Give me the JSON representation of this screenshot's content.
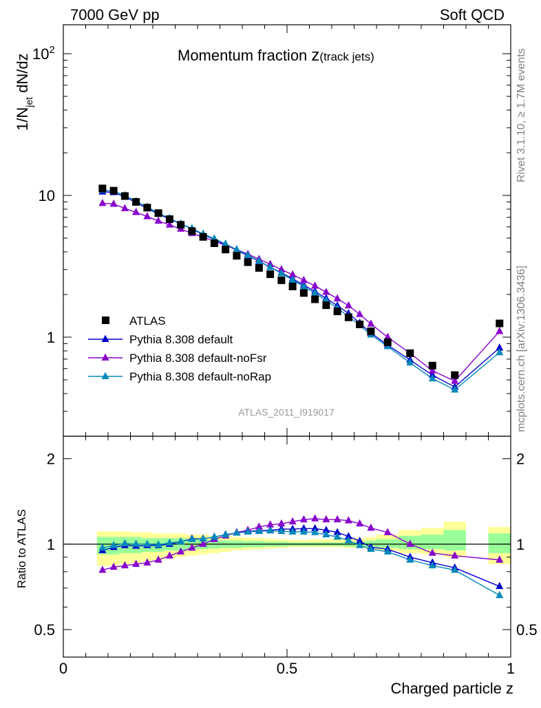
{
  "header": {
    "left": "7000 GeV pp",
    "right": "Soft QCD",
    "side_top": "Rivet 3.1.10, ≥ 1.7M events",
    "side_bottom": "mcplots.cern.ch [arXiv:1306.3436]"
  },
  "chart_data": {
    "type": "line",
    "title_main": "Momentum fraction ",
    "title_z": "z",
    "title_sub": "(track jets)",
    "reference": "ATLAS_2011_I919017",
    "xlabel": "Charged particle z",
    "ylabel": "1/N",
    "ylabel_sub": "jet",
    "ylabel_tail": " dN/dz",
    "ratio_ylabel": "Ratio to ATLAS",
    "xlim": [
      0,
      1
    ],
    "ylim": [
      0.2,
      160
    ],
    "ylog": true,
    "ratio_ylim": [
      0.4,
      2.4
    ],
    "ratio_log": true,
    "x_ticks": [
      {
        "v": 0,
        "label": "0"
      },
      {
        "v": 0.5,
        "label": "0.5"
      },
      {
        "v": 1,
        "label": "1"
      }
    ],
    "y_ticks": [
      {
        "v": 1,
        "label": "1"
      },
      {
        "v": 10,
        "label": "10"
      },
      {
        "v": 100,
        "label": "10",
        "sup": "2"
      }
    ],
    "ratio_ticks": [
      {
        "v": 0.5,
        "label": "0.5"
      },
      {
        "v": 1,
        "label": "1"
      },
      {
        "v": 2,
        "label": "2"
      }
    ],
    "bins": [
      0.0875,
      0.1125,
      0.1375,
      0.1625,
      0.1875,
      0.2125,
      0.2375,
      0.2625,
      0.2875,
      0.3125,
      0.3375,
      0.3625,
      0.3875,
      0.4125,
      0.4375,
      0.4625,
      0.4875,
      0.5125,
      0.5375,
      0.5625,
      0.5875,
      0.6125,
      0.6375,
      0.6625,
      0.6875,
      0.725,
      0.775,
      0.825,
      0.875,
      0.975
    ],
    "bin_edges": [
      0.075,
      0.1,
      0.125,
      0.15,
      0.175,
      0.2,
      0.225,
      0.25,
      0.275,
      0.3,
      0.325,
      0.35,
      0.375,
      0.4,
      0.425,
      0.45,
      0.475,
      0.5,
      0.525,
      0.55,
      0.575,
      0.6,
      0.625,
      0.65,
      0.675,
      0.7,
      0.75,
      0.8,
      0.85,
      0.9,
      0.95,
      1.0
    ],
    "data": {
      "name": "ATLAS",
      "values": [
        11.2,
        10.8,
        9.9,
        9.0,
        8.2,
        7.5,
        6.8,
        6.2,
        5.6,
        5.1,
        4.6,
        4.15,
        3.75,
        3.38,
        3.08,
        2.78,
        2.52,
        2.28,
        2.05,
        1.85,
        1.68,
        1.52,
        1.38,
        1.23,
        1.1,
        0.92,
        0.77,
        0.63,
        0.54,
        1.25
      ]
    },
    "band_outer": [
      [
        0.84,
        1.11
      ],
      [
        0.84,
        1.11
      ],
      [
        0.85,
        1.11
      ],
      [
        0.86,
        1.1
      ],
      [
        0.87,
        1.1
      ],
      [
        0.88,
        1.09
      ],
      [
        0.89,
        1.09
      ],
      [
        0.9,
        1.09
      ],
      [
        0.91,
        1.08
      ],
      [
        0.92,
        1.08
      ],
      [
        0.93,
        1.07
      ],
      [
        0.94,
        1.07
      ],
      [
        0.95,
        1.06
      ],
      [
        0.955,
        1.055
      ],
      [
        0.96,
        1.05
      ],
      [
        0.965,
        1.045
      ],
      [
        0.97,
        1.04
      ],
      [
        0.975,
        1.035
      ],
      [
        0.975,
        1.035
      ],
      [
        0.975,
        1.04
      ],
      [
        0.975,
        1.04
      ],
      [
        0.975,
        1.04
      ],
      [
        0.97,
        1.045
      ],
      [
        0.97,
        1.05
      ],
      [
        0.96,
        1.06
      ],
      [
        0.95,
        1.08
      ],
      [
        0.93,
        1.12
      ],
      [
        0.92,
        1.14
      ],
      [
        0.9,
        1.2
      ],
      null,
      [
        0.85,
        1.15
      ]
    ],
    "band_inner": [
      [
        0.92,
        1.06
      ],
      [
        0.92,
        1.06
      ],
      [
        0.93,
        1.06
      ],
      [
        0.93,
        1.06
      ],
      [
        0.94,
        1.05
      ],
      [
        0.94,
        1.05
      ],
      [
        0.95,
        1.05
      ],
      [
        0.95,
        1.05
      ],
      [
        0.96,
        1.04
      ],
      [
        0.96,
        1.04
      ],
      [
        0.965,
        1.035
      ],
      [
        0.97,
        1.03
      ],
      [
        0.97,
        1.03
      ],
      [
        0.975,
        1.025
      ],
      [
        0.975,
        1.025
      ],
      [
        0.98,
        1.02
      ],
      [
        0.98,
        1.02
      ],
      [
        0.985,
        1.015
      ],
      [
        0.985,
        1.015
      ],
      [
        0.985,
        1.015
      ],
      [
        0.985,
        1.015
      ],
      [
        0.985,
        1.015
      ],
      [
        0.98,
        1.02
      ],
      [
        0.98,
        1.02
      ],
      [
        0.975,
        1.03
      ],
      [
        0.97,
        1.04
      ],
      [
        0.96,
        1.07
      ],
      [
        0.96,
        1.08
      ],
      [
        0.95,
        1.12
      ],
      null,
      [
        0.93,
        1.09
      ]
    ],
    "series": [
      {
        "name": "Pythia 8.308 default",
        "color": "#0000cc",
        "values": [
          10.6,
          10.5,
          9.8,
          8.9,
          8.1,
          7.4,
          6.8,
          6.3,
          5.8,
          5.3,
          4.9,
          4.5,
          4.1,
          3.75,
          3.43,
          3.12,
          2.85,
          2.58,
          2.33,
          2.1,
          1.88,
          1.67,
          1.47,
          1.26,
          1.07,
          0.88,
          0.69,
          0.54,
          0.445,
          0.84
        ],
        "ratio": [
          0.95,
          0.975,
          0.99,
          0.985,
          0.99,
          0.99,
          1.0,
          1.02,
          1.045,
          1.045,
          1.06,
          1.08,
          1.095,
          1.11,
          1.115,
          1.12,
          1.13,
          1.13,
          1.135,
          1.135,
          1.12,
          1.1,
          1.065,
          1.025,
          0.975,
          0.96,
          0.9,
          0.86,
          0.825,
          0.71
        ]
      },
      {
        "name": "Pythia 8.308 default-noFsr",
        "color": "#8800cc",
        "values": [
          8.8,
          8.7,
          8.1,
          7.6,
          7.1,
          6.6,
          6.2,
          5.8,
          5.4,
          5.1,
          4.75,
          4.45,
          4.15,
          3.85,
          3.55,
          3.27,
          3.0,
          2.76,
          2.52,
          2.3,
          2.08,
          1.87,
          1.67,
          1.45,
          1.24,
          1.0,
          0.77,
          0.58,
          0.49,
          1.1
        ],
        "ratio": [
          0.81,
          0.83,
          0.84,
          0.85,
          0.86,
          0.88,
          0.91,
          0.94,
          0.97,
          1.0,
          1.04,
          1.07,
          1.1,
          1.12,
          1.15,
          1.17,
          1.18,
          1.2,
          1.22,
          1.23,
          1.22,
          1.22,
          1.21,
          1.18,
          1.14,
          1.1,
          1.0,
          0.93,
          0.91,
          0.88
        ]
      },
      {
        "name": "Pythia 8.308 default-noRap",
        "color": "#0088bb",
        "values": [
          10.9,
          10.7,
          10.0,
          9.1,
          8.3,
          7.5,
          6.9,
          6.3,
          5.85,
          5.35,
          4.95,
          4.55,
          4.15,
          3.78,
          3.45,
          3.12,
          2.82,
          2.53,
          2.27,
          2.04,
          1.82,
          1.6,
          1.4,
          1.21,
          1.04,
          0.86,
          0.66,
          0.51,
          0.425,
          0.78
        ],
        "ratio": [
          0.97,
          0.99,
          1.005,
          1.0,
          1.0,
          0.995,
          1.01,
          1.02,
          1.04,
          1.045,
          1.06,
          1.08,
          1.095,
          1.105,
          1.11,
          1.115,
          1.11,
          1.105,
          1.105,
          1.1,
          1.08,
          1.06,
          1.03,
          0.99,
          0.96,
          0.94,
          0.88,
          0.84,
          0.81,
          0.66
        ]
      }
    ],
    "legend_position": "lower-left"
  }
}
